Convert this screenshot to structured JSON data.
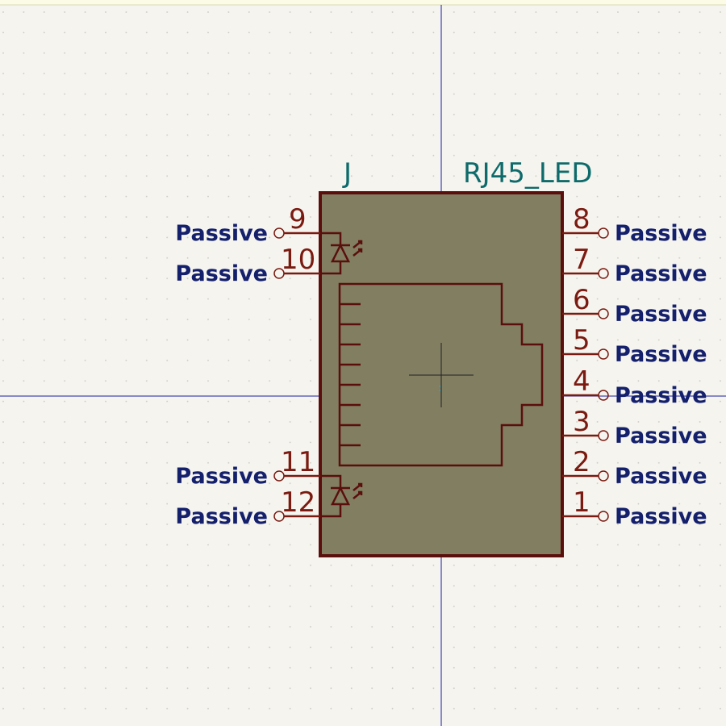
{
  "symbol": {
    "reference": "J",
    "value": "RJ45_LED"
  },
  "pins": {
    "left": [
      {
        "number": "9",
        "type": "Passive"
      },
      {
        "number": "10",
        "type": "Passive"
      },
      {
        "number": "11",
        "type": "Passive"
      },
      {
        "number": "12",
        "type": "Passive"
      }
    ],
    "right": [
      {
        "number": "8",
        "type": "Passive"
      },
      {
        "number": "7",
        "type": "Passive"
      },
      {
        "number": "6",
        "type": "Passive"
      },
      {
        "number": "5",
        "type": "Passive"
      },
      {
        "number": "4",
        "type": "Passive"
      },
      {
        "number": "3",
        "type": "Passive"
      },
      {
        "number": "2",
        "type": "Passive"
      },
      {
        "number": "1",
        "type": "Passive"
      }
    ]
  },
  "colors": {
    "background": "#f5f4ef",
    "grid_dot": "#c9c8bf",
    "axis": "#1b1fa0",
    "body_fill": "#817e62",
    "body_outline": "#5a0f0c",
    "pin_line": "#7a1a10",
    "pin_type_text": "#14206c",
    "field_text": "#0e6b6b"
  },
  "icons": {
    "led": "led-icon",
    "pin_end": "pin-end-circle-icon",
    "anchor": "anchor-crosshair-icon"
  }
}
